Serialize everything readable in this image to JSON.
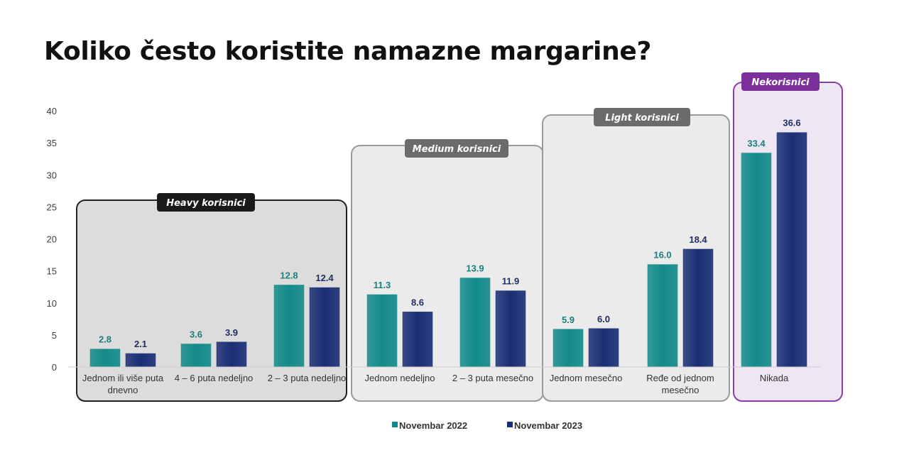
{
  "title": "Koliko često koristite namazne margarine?",
  "chart_data": {
    "type": "bar",
    "categories": [
      [
        "Jednom ili više puta",
        "dnevno"
      ],
      [
        "4 – 6 puta nedeljno"
      ],
      [
        "2 – 3 puta nedeljno"
      ],
      [
        "Jednom nedeljno"
      ],
      [
        "2 – 3 puta mesečno"
      ],
      [
        "Jednom mesečno"
      ],
      [
        "Ređe od jednom",
        "mesečno"
      ],
      [
        "Nikada"
      ]
    ],
    "series": [
      {
        "name": "Novembar 2022",
        "color": "#138a8a",
        "label_color": "#1a7f7f",
        "values": [
          2.8,
          3.6,
          12.8,
          11.3,
          13.9,
          5.9,
          16.0,
          33.4
        ]
      },
      {
        "name": "Novembar 2023",
        "color": "#1a2e75",
        "label_color": "#1f2f66",
        "values": [
          2.1,
          3.9,
          12.4,
          8.6,
          11.9,
          6.0,
          18.4,
          36.6
        ]
      }
    ],
    "ylim": [
      0,
      40
    ],
    "yticks": [
      0,
      5,
      10,
      15,
      20,
      25,
      30,
      35,
      40
    ],
    "grid": false,
    "legend_position": "bottom",
    "xlabel": "",
    "ylabel": "",
    "groups": [
      {
        "label": "Heavy korisnici",
        "categories": [
          0,
          1,
          2
        ],
        "style": "dark"
      },
      {
        "label": "Medium korisnici",
        "categories": [
          3,
          4
        ],
        "style": "gray"
      },
      {
        "label": "Light korisnici",
        "categories": [
          5,
          6
        ],
        "style": "gray"
      },
      {
        "label": "Nekorisnici",
        "categories": [
          7
        ],
        "style": "purple"
      }
    ],
    "group_styles": {
      "dark": {
        "fill": "#dcdcdc",
        "stroke": "#222222",
        "tag": "#1a1a1a"
      },
      "gray": {
        "fill": "#ebebeb",
        "stroke": "#9a9a9a",
        "tag": "#6b6b6b"
      },
      "purple": {
        "fill": "#eee6f2",
        "stroke": "#8a3fa6",
        "tag": "#7b2f9a"
      }
    }
  }
}
